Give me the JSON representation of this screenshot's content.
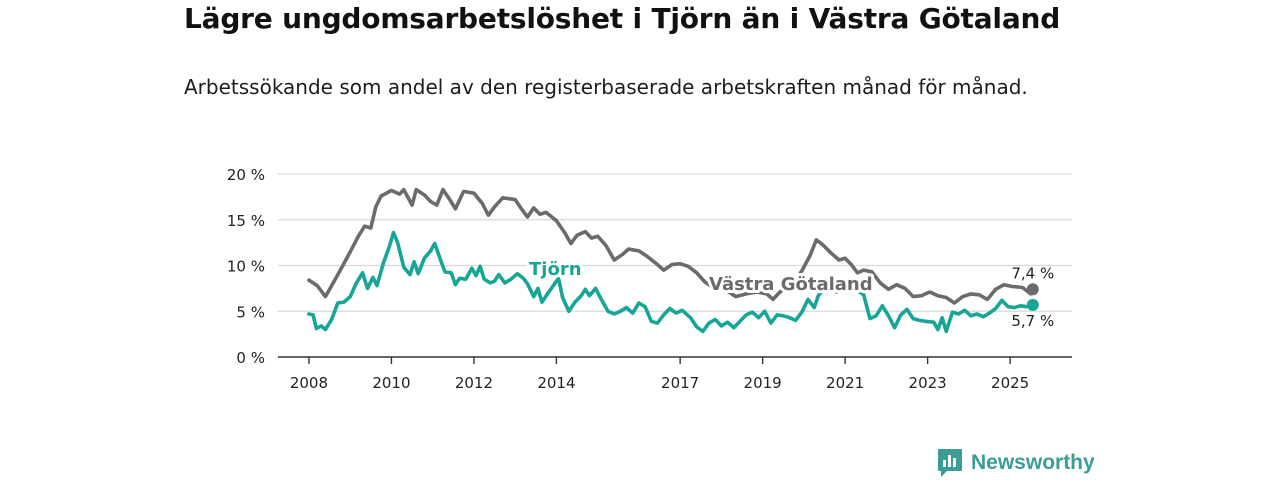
{
  "title": "Lägre ungdomsarbetslöshet i Tjörn än i Västra Götaland",
  "subtitle": "Arbetssökande som andel av den registerbaserade arbetskraften månad för månad.",
  "brand": {
    "name": "Newsworthy",
    "icon": "newsworthy-logo-icon"
  },
  "colors": {
    "tjorn": "#17a696",
    "vastra_gotaland": "#6b6b6b",
    "grid": "#d9d9d9",
    "axis": "#333333",
    "brand": "#3a9e95"
  },
  "chart_data": {
    "type": "line",
    "title": "Lägre ungdomsarbetslöshet i Tjörn än i Västra Götaland",
    "subtitle": "Arbetssökande som andel av den registerbaserade arbetskraften månad för månad.",
    "xlabel": "",
    "ylabel": "",
    "x_ticks": [
      "2008",
      "2010",
      "2012",
      "2014",
      "2017",
      "2019",
      "2021",
      "2023",
      "2025"
    ],
    "x_range": [
      2007.25,
      2026.5
    ],
    "y_ticks": [
      "0 %",
      "5 %",
      "10 %",
      "15 %",
      "20 %"
    ],
    "ylim": [
      0,
      20
    ],
    "grid": "horizontal",
    "legend": "inline labels",
    "series": [
      {
        "name": "Västra Götaland",
        "end_label": "7,4 %",
        "points": [
          [
            2008.0,
            8.4
          ],
          [
            2008.2,
            7.8
          ],
          [
            2008.4,
            6.6
          ],
          [
            2008.6,
            8.2
          ],
          [
            2008.8,
            9.8
          ],
          [
            2009.0,
            11.5
          ],
          [
            2009.2,
            13.2
          ],
          [
            2009.35,
            14.3
          ],
          [
            2009.5,
            14.1
          ],
          [
            2009.62,
            16.4
          ],
          [
            2009.75,
            17.6
          ],
          [
            2010.0,
            18.2
          ],
          [
            2010.2,
            17.8
          ],
          [
            2010.3,
            18.3
          ],
          [
            2010.5,
            16.6
          ],
          [
            2010.6,
            18.3
          ],
          [
            2010.8,
            17.7
          ],
          [
            2010.95,
            17.0
          ],
          [
            2011.1,
            16.6
          ],
          [
            2011.25,
            18.3
          ],
          [
            2011.4,
            17.3
          ],
          [
            2011.55,
            16.2
          ],
          [
            2011.75,
            18.1
          ],
          [
            2012.0,
            17.9
          ],
          [
            2012.2,
            16.8
          ],
          [
            2012.35,
            15.5
          ],
          [
            2012.5,
            16.4
          ],
          [
            2012.7,
            17.4
          ],
          [
            2012.85,
            17.3
          ],
          [
            2013.0,
            17.2
          ],
          [
            2013.15,
            16.2
          ],
          [
            2013.3,
            15.3
          ],
          [
            2013.45,
            16.3
          ],
          [
            2013.6,
            15.6
          ],
          [
            2013.75,
            15.8
          ],
          [
            2014.0,
            14.9
          ],
          [
            2014.2,
            13.6
          ],
          [
            2014.35,
            12.4
          ],
          [
            2014.5,
            13.3
          ],
          [
            2014.7,
            13.7
          ],
          [
            2014.85,
            13.0
          ],
          [
            2015.0,
            13.2
          ],
          [
            2015.2,
            12.2
          ],
          [
            2015.4,
            10.6
          ],
          [
            2015.6,
            11.2
          ],
          [
            2015.75,
            11.8
          ],
          [
            2016.0,
            11.6
          ],
          [
            2016.2,
            11.0
          ],
          [
            2016.4,
            10.3
          ],
          [
            2016.6,
            9.5
          ],
          [
            2016.8,
            10.1
          ],
          [
            2017.0,
            10.2
          ],
          [
            2017.2,
            9.9
          ],
          [
            2017.4,
            9.2
          ],
          [
            2017.6,
            8.2
          ],
          [
            2017.8,
            7.6
          ],
          [
            2017.95,
            7.9
          ],
          [
            2018.15,
            7.2
          ],
          [
            2018.35,
            6.6
          ],
          [
            2018.6,
            6.9
          ],
          [
            2018.85,
            7.1
          ],
          [
            2019.1,
            6.9
          ],
          [
            2019.25,
            6.3
          ],
          [
            2019.4,
            7.0
          ],
          [
            2019.55,
            7.6
          ],
          [
            2019.75,
            8.2
          ],
          [
            2019.95,
            9.4
          ],
          [
            2020.15,
            11.1
          ],
          [
            2020.3,
            12.8
          ],
          [
            2020.45,
            12.3
          ],
          [
            2020.65,
            11.4
          ],
          [
            2020.85,
            10.6
          ],
          [
            2021.0,
            10.8
          ],
          [
            2021.15,
            10.1
          ],
          [
            2021.3,
            9.2
          ],
          [
            2021.45,
            9.5
          ],
          [
            2021.65,
            9.3
          ],
          [
            2021.85,
            8.1
          ],
          [
            2022.05,
            7.4
          ],
          [
            2022.25,
            7.9
          ],
          [
            2022.45,
            7.5
          ],
          [
            2022.65,
            6.6
          ],
          [
            2022.85,
            6.7
          ],
          [
            2023.05,
            7.1
          ],
          [
            2023.25,
            6.7
          ],
          [
            2023.45,
            6.5
          ],
          [
            2023.65,
            5.9
          ],
          [
            2023.85,
            6.6
          ],
          [
            2024.05,
            6.9
          ],
          [
            2024.25,
            6.8
          ],
          [
            2024.45,
            6.3
          ],
          [
            2024.65,
            7.4
          ],
          [
            2024.85,
            7.9
          ],
          [
            2025.05,
            7.7
          ],
          [
            2025.3,
            7.6
          ],
          [
            2025.5,
            6.9
          ],
          [
            2025.55,
            7.4
          ]
        ]
      },
      {
        "name": "Tjörn",
        "end_label": "5,7 %",
        "points": [
          [
            2008.0,
            4.7
          ],
          [
            2008.1,
            4.6
          ],
          [
            2008.18,
            3.1
          ],
          [
            2008.3,
            3.4
          ],
          [
            2008.4,
            3.0
          ],
          [
            2008.55,
            4.1
          ],
          [
            2008.7,
            5.9
          ],
          [
            2008.85,
            6.0
          ],
          [
            2009.0,
            6.6
          ],
          [
            2009.15,
            8.1
          ],
          [
            2009.3,
            9.2
          ],
          [
            2009.42,
            7.5
          ],
          [
            2009.55,
            8.7
          ],
          [
            2009.65,
            7.8
          ],
          [
            2009.8,
            10.2
          ],
          [
            2009.95,
            12.1
          ],
          [
            2010.05,
            13.6
          ],
          [
            2010.15,
            12.5
          ],
          [
            2010.3,
            9.8
          ],
          [
            2010.45,
            9.0
          ],
          [
            2010.55,
            10.4
          ],
          [
            2010.65,
            9.1
          ],
          [
            2010.8,
            10.8
          ],
          [
            2010.95,
            11.6
          ],
          [
            2011.05,
            12.4
          ],
          [
            2011.2,
            10.5
          ],
          [
            2011.3,
            9.3
          ],
          [
            2011.45,
            9.2
          ],
          [
            2011.55,
            7.9
          ],
          [
            2011.65,
            8.6
          ],
          [
            2011.8,
            8.5
          ],
          [
            2011.95,
            9.7
          ],
          [
            2012.05,
            8.9
          ],
          [
            2012.15,
            9.9
          ],
          [
            2012.25,
            8.5
          ],
          [
            2012.4,
            8.1
          ],
          [
            2012.5,
            8.3
          ],
          [
            2012.6,
            9.0
          ],
          [
            2012.75,
            8.1
          ],
          [
            2012.9,
            8.5
          ],
          [
            2013.05,
            9.1
          ],
          [
            2013.2,
            8.6
          ],
          [
            2013.3,
            8.0
          ],
          [
            2013.45,
            6.6
          ],
          [
            2013.55,
            7.5
          ],
          [
            2013.65,
            6.0
          ],
          [
            2013.8,
            7.0
          ],
          [
            2014.05,
            8.6
          ],
          [
            2014.15,
            6.5
          ],
          [
            2014.3,
            5.0
          ],
          [
            2014.45,
            6.0
          ],
          [
            2014.6,
            6.7
          ],
          [
            2014.7,
            7.4
          ],
          [
            2014.8,
            6.7
          ],
          [
            2014.95,
            7.5
          ],
          [
            2015.1,
            6.2
          ],
          [
            2015.25,
            5.0
          ],
          [
            2015.4,
            4.7
          ],
          [
            2015.55,
            5.0
          ],
          [
            2015.7,
            5.4
          ],
          [
            2015.85,
            4.8
          ],
          [
            2016.0,
            5.9
          ],
          [
            2016.15,
            5.5
          ],
          [
            2016.3,
            3.9
          ],
          [
            2016.45,
            3.7
          ],
          [
            2016.6,
            4.6
          ],
          [
            2016.75,
            5.3
          ],
          [
            2016.9,
            4.8
          ],
          [
            2017.05,
            5.1
          ],
          [
            2017.25,
            4.3
          ],
          [
            2017.4,
            3.3
          ],
          [
            2017.55,
            2.8
          ],
          [
            2017.7,
            3.7
          ],
          [
            2017.85,
            4.1
          ],
          [
            2018.0,
            3.4
          ],
          [
            2018.15,
            3.8
          ],
          [
            2018.3,
            3.2
          ],
          [
            2018.45,
            3.9
          ],
          [
            2018.6,
            4.6
          ],
          [
            2018.75,
            4.9
          ],
          [
            2018.9,
            4.3
          ],
          [
            2019.05,
            5.0
          ],
          [
            2019.2,
            3.7
          ],
          [
            2019.35,
            4.6
          ],
          [
            2019.5,
            4.5
          ],
          [
            2019.65,
            4.3
          ],
          [
            2019.8,
            4.0
          ],
          [
            2019.95,
            4.9
          ],
          [
            2020.1,
            6.3
          ],
          [
            2020.25,
            5.4
          ],
          [
            2020.35,
            6.7
          ],
          [
            2020.5,
            7.5
          ],
          [
            2020.65,
            7.9
          ],
          [
            2020.8,
            7.1
          ],
          [
            2020.95,
            7.6
          ],
          [
            2021.1,
            7.3
          ],
          [
            2021.25,
            7.4
          ],
          [
            2021.45,
            6.8
          ],
          [
            2021.6,
            4.2
          ],
          [
            2021.75,
            4.5
          ],
          [
            2021.9,
            5.6
          ],
          [
            2022.05,
            4.5
          ],
          [
            2022.2,
            3.2
          ],
          [
            2022.35,
            4.6
          ],
          [
            2022.5,
            5.2
          ],
          [
            2022.65,
            4.2
          ],
          [
            2022.8,
            4.0
          ],
          [
            2022.95,
            3.9
          ],
          [
            2023.15,
            3.8
          ],
          [
            2023.25,
            3.0
          ],
          [
            2023.35,
            4.3
          ],
          [
            2023.45,
            2.8
          ],
          [
            2023.6,
            4.9
          ],
          [
            2023.75,
            4.7
          ],
          [
            2023.9,
            5.1
          ],
          [
            2024.05,
            4.5
          ],
          [
            2024.2,
            4.7
          ],
          [
            2024.35,
            4.4
          ],
          [
            2024.5,
            4.8
          ],
          [
            2024.65,
            5.3
          ],
          [
            2024.8,
            6.2
          ],
          [
            2024.95,
            5.5
          ],
          [
            2025.1,
            5.4
          ],
          [
            2025.25,
            5.6
          ],
          [
            2025.4,
            5.5
          ],
          [
            2025.55,
            5.7
          ]
        ]
      }
    ]
  }
}
